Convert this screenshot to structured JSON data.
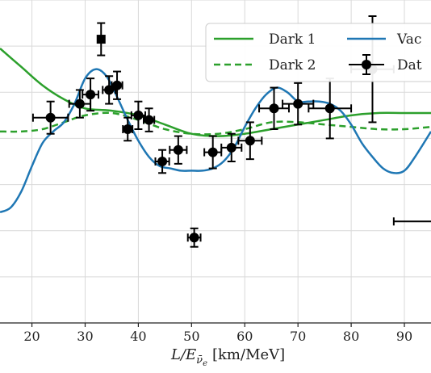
{
  "chart_data": {
    "type": "line",
    "xlabel_main": "L/E",
    "xlabel_sub": "ν̄",
    "xlabel_sub2": "e",
    "xlabel_units": "[km/MeV]",
    "xlim": [
      14,
      95
    ],
    "ylim": [
      0.0,
      1.4
    ],
    "x_ticks": [
      20,
      30,
      40,
      50,
      60,
      70,
      80,
      90
    ],
    "x_tick_labels": [
      "20",
      "30",
      "40",
      "50",
      "60",
      "70",
      "80",
      "90"
    ],
    "y_ticks": [
      0.2,
      0.4,
      0.6,
      0.8,
      1.0,
      1.2,
      1.4
    ],
    "grid": true,
    "legend_placement": "top-right",
    "colors": {
      "dark1": "#2ca02c",
      "dark2": "#2ca02c",
      "vacuum": "#1f77b4",
      "data": "#000000"
    },
    "legend": [
      {
        "label": "Dark 1",
        "style": "solid-green"
      },
      {
        "label": "Dark 2",
        "style": "dashed-green"
      },
      {
        "label": "Vac",
        "style": "solid-blue"
      },
      {
        "label": "Dat",
        "style": "errorbar-black"
      }
    ],
    "series": [
      {
        "name": "Dark 1",
        "x": [
          14,
          18,
          22,
          26,
          30,
          35,
          40,
          45,
          50,
          55,
          60,
          65,
          70,
          75,
          80,
          85,
          90,
          95
        ],
        "values": [
          1.19,
          1.11,
          1.03,
          0.97,
          0.93,
          0.92,
          0.9,
          0.86,
          0.82,
          0.81,
          0.82,
          0.84,
          0.86,
          0.88,
          0.9,
          0.91,
          0.91,
          0.91
        ]
      },
      {
        "name": "Dark 2",
        "x": [
          14,
          18,
          22,
          26,
          30,
          35,
          40,
          45,
          50,
          55,
          60,
          65,
          70,
          75,
          80,
          85,
          90,
          95
        ],
        "values": [
          0.83,
          0.83,
          0.84,
          0.87,
          0.9,
          0.91,
          0.88,
          0.84,
          0.82,
          0.82,
          0.84,
          0.87,
          0.87,
          0.86,
          0.85,
          0.84,
          0.84,
          0.85
        ]
      },
      {
        "name": "Vac",
        "x": [
          14,
          16,
          18,
          20,
          22,
          24,
          26,
          28,
          30,
          32,
          34,
          36,
          38,
          40,
          42,
          44,
          46,
          48,
          50,
          52,
          54,
          56,
          58,
          60,
          62,
          64,
          66,
          68,
          70,
          72,
          74,
          76,
          78,
          80,
          82,
          84,
          86,
          88,
          90,
          92,
          95
        ],
        "values": [
          0.48,
          0.5,
          0.57,
          0.68,
          0.78,
          0.83,
          0.87,
          0.95,
          1.06,
          1.1,
          1.07,
          0.98,
          0.88,
          0.79,
          0.72,
          0.68,
          0.67,
          0.66,
          0.66,
          0.66,
          0.67,
          0.7,
          0.76,
          0.85,
          0.93,
          0.99,
          1.02,
          1.0,
          0.96,
          0.96,
          0.96,
          0.95,
          0.92,
          0.86,
          0.78,
          0.72,
          0.67,
          0.65,
          0.66,
          0.72,
          0.83
        ]
      }
    ],
    "data_points": [
      {
        "x": 23.5,
        "y": 0.89,
        "xerr": 3.3,
        "yerr": 0.07,
        "marker": "circle"
      },
      {
        "x": 29.0,
        "y": 0.95,
        "xerr": 2.0,
        "yerr": 0.06,
        "marker": "circle"
      },
      {
        "x": 31.0,
        "y": 0.99,
        "xerr": 1.5,
        "yerr": 0.07,
        "marker": "circle"
      },
      {
        "x": 33.0,
        "y": 1.23,
        "xerr": 0.6,
        "yerr": 0.07,
        "marker": "square"
      },
      {
        "x": 34.5,
        "y": 1.01,
        "xerr": 1.2,
        "yerr": 0.06,
        "marker": "circle"
      },
      {
        "x": 36.0,
        "y": 1.03,
        "xerr": 1.0,
        "yerr": 0.06,
        "marker": "circle"
      },
      {
        "x": 38.0,
        "y": 0.84,
        "xerr": 0.9,
        "yerr": 0.05,
        "marker": "circle"
      },
      {
        "x": 40.0,
        "y": 0.9,
        "xerr": 1.3,
        "yerr": 0.06,
        "marker": "circle"
      },
      {
        "x": 42.0,
        "y": 0.88,
        "xerr": 1.0,
        "yerr": 0.05,
        "marker": "circle"
      },
      {
        "x": 44.5,
        "y": 0.7,
        "xerr": 1.3,
        "yerr": 0.05,
        "marker": "circle"
      },
      {
        "x": 47.5,
        "y": 0.75,
        "xerr": 1.6,
        "yerr": 0.06,
        "marker": "circle"
      },
      {
        "x": 50.5,
        "y": 0.37,
        "xerr": 1.2,
        "yerr": 0.04,
        "marker": "circle"
      },
      {
        "x": 54.0,
        "y": 0.74,
        "xerr": 1.6,
        "yerr": 0.07,
        "marker": "circle"
      },
      {
        "x": 57.5,
        "y": 0.76,
        "xerr": 1.9,
        "yerr": 0.06,
        "marker": "circle"
      },
      {
        "x": 61.0,
        "y": 0.79,
        "xerr": 2.2,
        "yerr": 0.08,
        "marker": "circle"
      },
      {
        "x": 65.5,
        "y": 0.93,
        "xerr": 2.8,
        "yerr": 0.09,
        "marker": "circle"
      },
      {
        "x": 70.0,
        "y": 0.95,
        "xerr": 2.9,
        "yerr": 0.09,
        "marker": "circle"
      },
      {
        "x": 76.0,
        "y": 0.93,
        "xerr": 4.0,
        "yerr": 0.13,
        "marker": "circle"
      },
      {
        "x": 84.0,
        "y": 1.1,
        "xerr": 4.0,
        "yerr": 0.23,
        "marker": "circle"
      },
      {
        "x": 92.0,
        "y": 0.44,
        "xerr": 4.0,
        "yerr": 0.0,
        "marker": "circle"
      }
    ]
  }
}
